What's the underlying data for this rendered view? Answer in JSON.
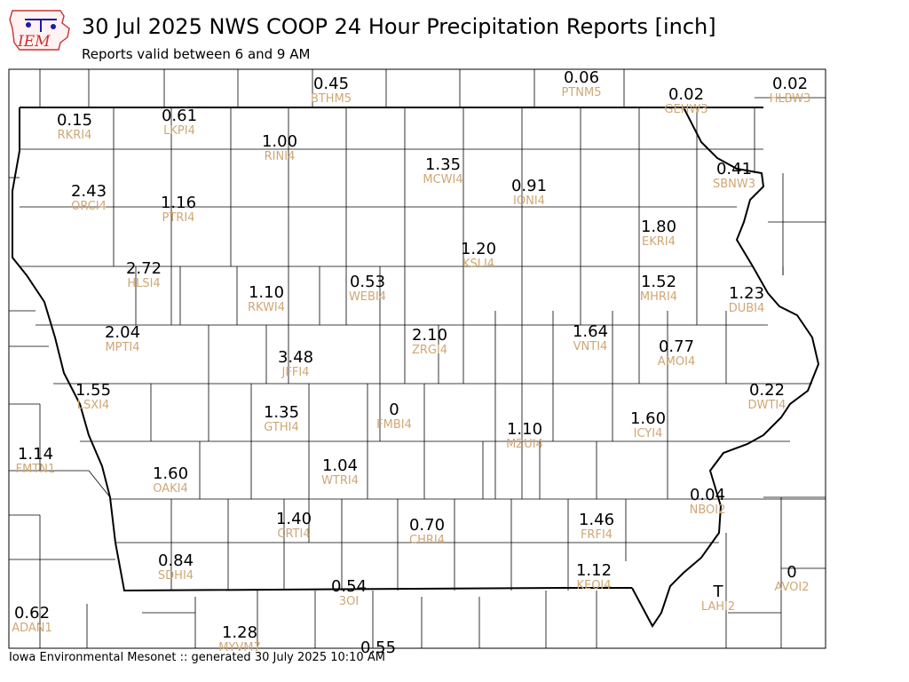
{
  "header": {
    "logo_text": "IEM",
    "title": "30 Jul 2025 NWS COOP 24 Hour Precipitation Reports [inch]",
    "subtitle": "Reports valid between 6 and 9 AM"
  },
  "footer": {
    "text": "Iowa Environmental Mesonet :: generated 30 July 2025 10:10 AM"
  },
  "colors": {
    "value_text": "#000000",
    "station_text": "#cfa774",
    "county_lines": "#000000",
    "logo_red": "#c8322d",
    "logo_blue": "#1a1aa8"
  },
  "stations": [
    {
      "id": "BTHM5",
      "value": "0.45"
    },
    {
      "id": "PTNM5",
      "value": "0.06"
    },
    {
      "id": "GEHW3",
      "value": "0.02"
    },
    {
      "id": "HLBW3",
      "value": "0.02"
    },
    {
      "id": "RKRI4",
      "value": "0.15"
    },
    {
      "id": "LKPI4",
      "value": "0.61"
    },
    {
      "id": "RINI4",
      "value": "1.00"
    },
    {
      "id": "MCWI4",
      "value": "1.35"
    },
    {
      "id": "IONI4",
      "value": "0.91"
    },
    {
      "id": "SBNW3",
      "value": "0.41"
    },
    {
      "id": "ORCI4",
      "value": "2.43"
    },
    {
      "id": "PTRI4",
      "value": "1.16"
    },
    {
      "id": "EKRI4",
      "value": "1.80"
    },
    {
      "id": "KSLI4",
      "value": "1.20"
    },
    {
      "id": "HLSI4",
      "value": "2.72"
    },
    {
      "id": "RKWI4",
      "value": "1.10"
    },
    {
      "id": "WEBI4",
      "value": "0.53"
    },
    {
      "id": "MHRI4",
      "value": "1.52"
    },
    {
      "id": "DUBI4",
      "value": "1.23"
    },
    {
      "id": "MPTI4",
      "value": "2.04"
    },
    {
      "id": "ZRGI4",
      "value": "2.10"
    },
    {
      "id": "VNTI4",
      "value": "1.64"
    },
    {
      "id": "JFFI4",
      "value": "3.48"
    },
    {
      "id": "AMOI4",
      "value": "0.77"
    },
    {
      "id": "LSXI4",
      "value": "1.55"
    },
    {
      "id": "GTHI4",
      "value": "1.35"
    },
    {
      "id": "FMBI4",
      "value": "0"
    },
    {
      "id": "DWTI4",
      "value": "0.22"
    },
    {
      "id": "MZUI4",
      "value": "1.10"
    },
    {
      "id": "ICYI4",
      "value": "1.60"
    },
    {
      "id": "FMTN1",
      "value": "1.14"
    },
    {
      "id": "OAKI4",
      "value": "1.60"
    },
    {
      "id": "WTRI4",
      "value": "1.04"
    },
    {
      "id": "NBOI2",
      "value": "0.04"
    },
    {
      "id": "CRTI4",
      "value": "1.40"
    },
    {
      "id": "CHRI4",
      "value": "0.70"
    },
    {
      "id": "FRFI4",
      "value": "1.46"
    },
    {
      "id": "SDHI4",
      "value": "0.84"
    },
    {
      "id": "KEOI4",
      "value": "1.12"
    },
    {
      "id": "AVOI2",
      "value": "0"
    },
    {
      "id": "3OI",
      "value": "0.54"
    },
    {
      "id": "LAHI2",
      "value": "T"
    },
    {
      "id": "ADAN1",
      "value": "0.62"
    },
    {
      "id": "MYVM7",
      "value": "1.28"
    },
    {
      "id": "",
      "value": "0.55"
    }
  ]
}
